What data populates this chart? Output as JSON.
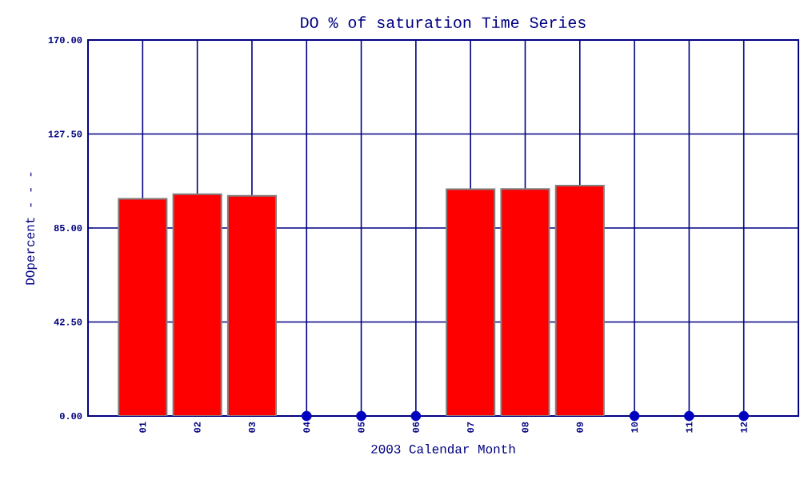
{
  "chart_data": {
    "type": "bar",
    "title": "DO % of saturation Time Series",
    "xlabel": "2003 Calendar Month",
    "ylabel": "DOpercent - - -",
    "categories": [
      "01",
      "02",
      "03",
      "04",
      "05",
      "06",
      "07",
      "08",
      "09",
      "10",
      "11",
      "12"
    ],
    "series": [
      {
        "color": "#ff0000",
        "values": [
          98.2,
          100.3,
          99.6,
          null,
          null,
          null,
          102.5,
          102.6,
          104.2,
          null,
          null,
          null
        ]
      },
      {
        "type": "scatter",
        "color": "#0000c0",
        "values": [
          null,
          null,
          null,
          0,
          0,
          0,
          null,
          null,
          null,
          0,
          0,
          0
        ]
      }
    ],
    "ylim": [
      0,
      170
    ],
    "yticks": [
      {
        "value": 0,
        "label": "0.00"
      },
      {
        "value": 42.5,
        "label": "42.50"
      },
      {
        "value": 85,
        "label": "85.00"
      },
      {
        "value": 127.5,
        "label": "127.50"
      },
      {
        "value": 170,
        "label": "170.00"
      }
    ],
    "grid": true
  }
}
